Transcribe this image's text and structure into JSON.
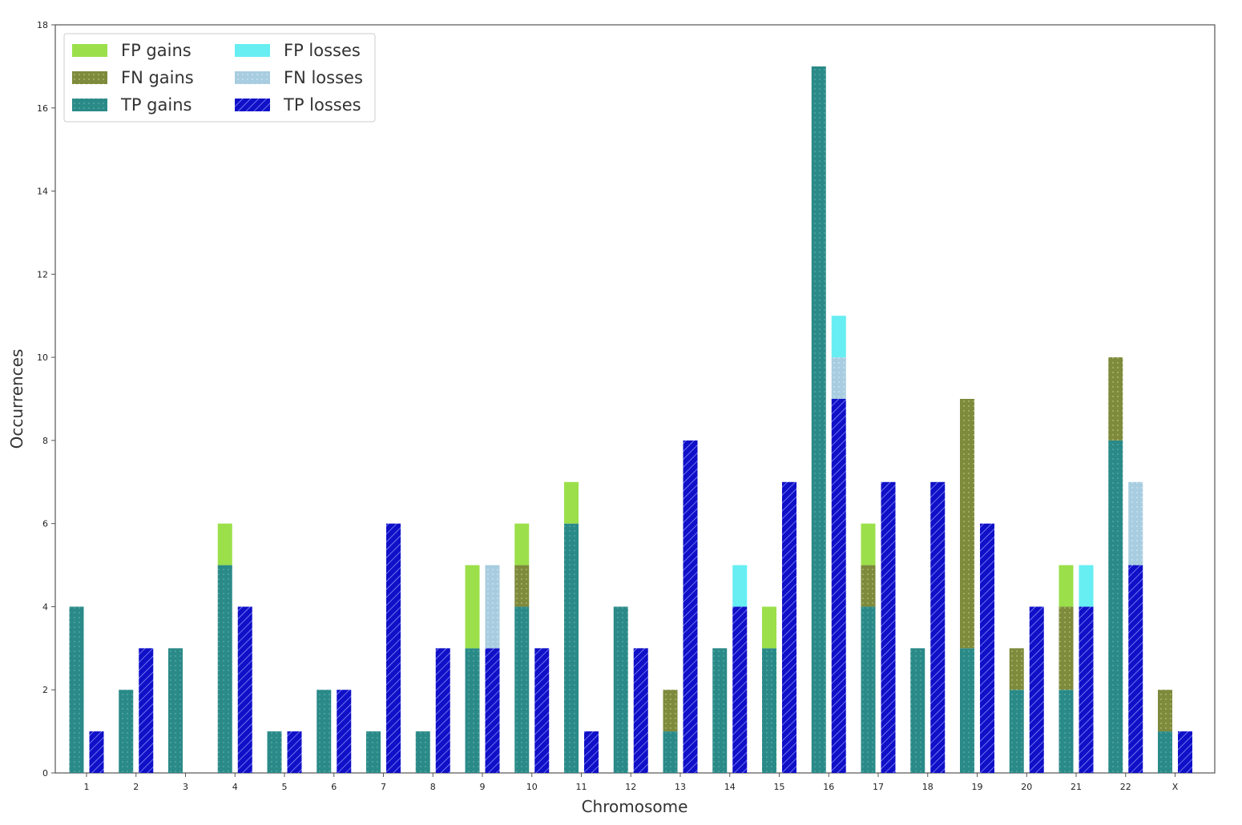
{
  "chart_data": {
    "type": "bar",
    "stacked": true,
    "xlabel": "Chromosome",
    "ylabel": "Occurrences",
    "ylim": [
      0,
      18
    ],
    "yticks": [
      0,
      2,
      4,
      6,
      8,
      10,
      12,
      14,
      16,
      18
    ],
    "grid": false,
    "legend_position": "top-left",
    "categories": [
      "1",
      "2",
      "3",
      "4",
      "5",
      "6",
      "7",
      "8",
      "9",
      "10",
      "11",
      "12",
      "13",
      "14",
      "15",
      "16",
      "17",
      "18",
      "19",
      "20",
      "21",
      "22",
      "X"
    ],
    "groups": [
      {
        "name": "gains",
        "series": [
          {
            "name": "TP gains",
            "color": "#2a8a88",
            "pattern": "dots",
            "values": [
              4,
              2,
              3,
              5,
              1,
              2,
              1,
              1,
              3,
              4,
              6,
              4,
              1,
              3,
              3,
              17,
              4,
              3,
              3,
              2,
              2,
              8,
              1
            ]
          },
          {
            "name": "FN gains",
            "color": "#7e8a3c",
            "pattern": "dots",
            "values": [
              0,
              0,
              0,
              0,
              0,
              0,
              0,
              0,
              0,
              1,
              0,
              0,
              1,
              0,
              0,
              0,
              1,
              0,
              6,
              1,
              2,
              2,
              1
            ]
          },
          {
            "name": "FP gains",
            "color": "#9be04a",
            "pattern": "solid",
            "values": [
              0,
              0,
              0,
              1,
              0,
              0,
              0,
              0,
              2,
              1,
              1,
              0,
              0,
              0,
              1,
              0,
              1,
              0,
              0,
              0,
              1,
              0,
              0
            ]
          }
        ]
      },
      {
        "name": "losses",
        "series": [
          {
            "name": "TP losses",
            "color": "#1010c8",
            "pattern": "hatch",
            "values": [
              1,
              3,
              0,
              4,
              1,
              2,
              6,
              3,
              3,
              3,
              1,
              3,
              8,
              4,
              7,
              9,
              7,
              7,
              6,
              4,
              4,
              5,
              1
            ]
          },
          {
            "name": "FN losses",
            "color": "#a8cde0",
            "pattern": "dots",
            "values": [
              0,
              0,
              0,
              0,
              0,
              0,
              0,
              0,
              2,
              0,
              0,
              0,
              0,
              0,
              0,
              1,
              0,
              0,
              0,
              0,
              0,
              2,
              0
            ]
          },
          {
            "name": "FP losses",
            "color": "#66eef2",
            "pattern": "solid",
            "values": [
              0,
              0,
              0,
              0,
              0,
              0,
              0,
              0,
              0,
              0,
              0,
              0,
              0,
              1,
              0,
              1,
              0,
              0,
              0,
              0,
              1,
              0,
              0
            ]
          }
        ]
      }
    ],
    "legend": [
      [
        "FP gains",
        "FP losses"
      ],
      [
        "FN gains",
        "FN losses"
      ],
      [
        "TP gains",
        "TP losses"
      ]
    ]
  }
}
